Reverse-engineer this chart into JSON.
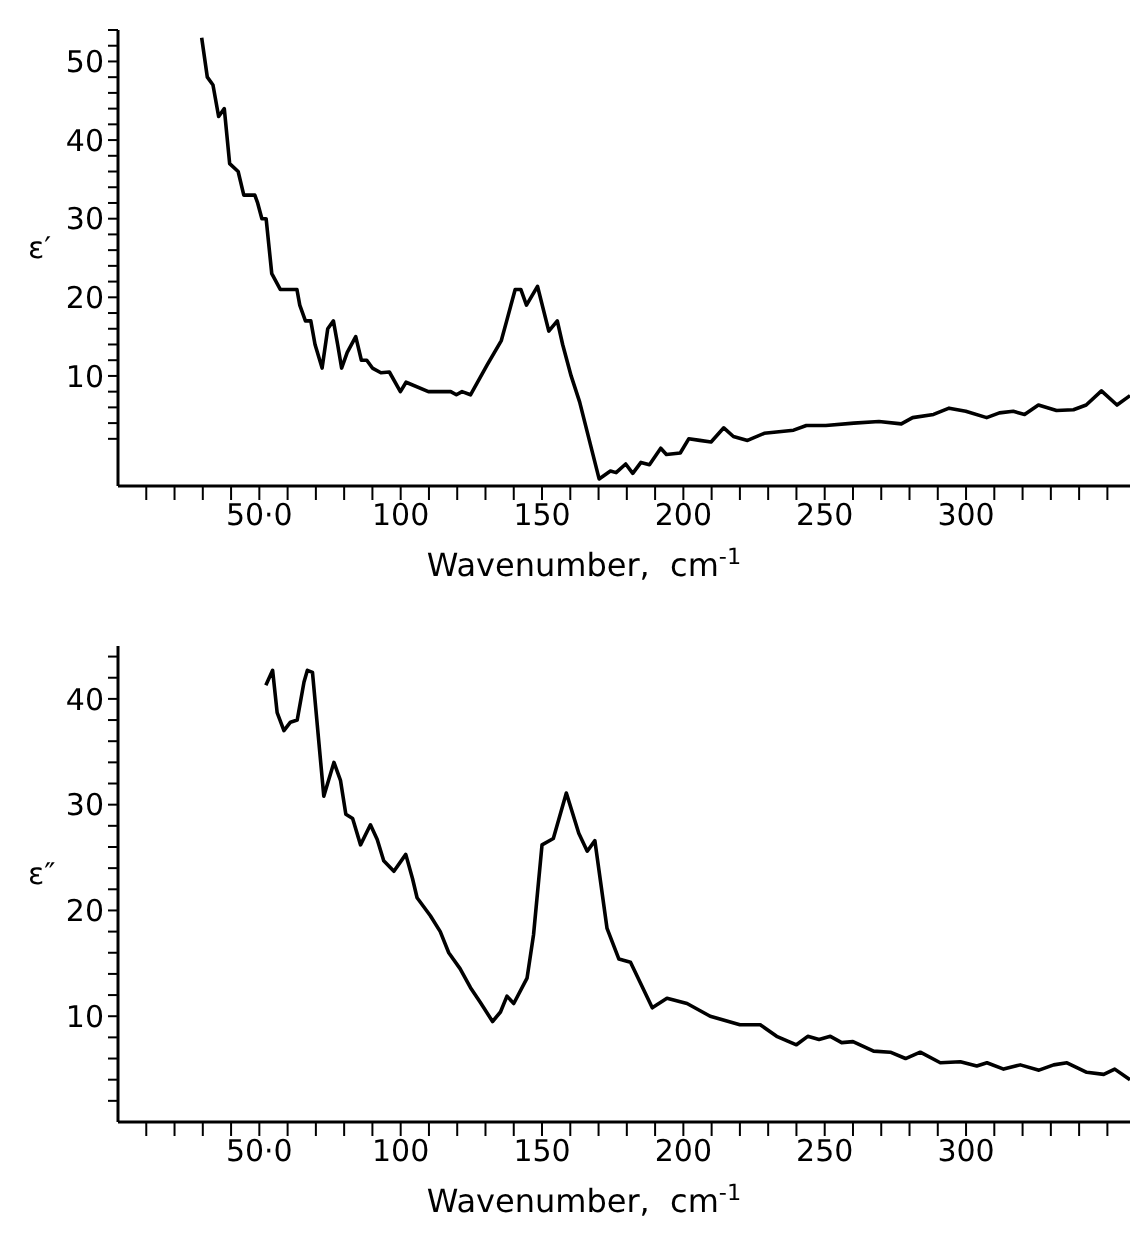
{
  "chart_data": [
    {
      "type": "line",
      "ylabel": "ε′",
      "xlabel": "Wavenumber,  cm$^{-1}$",
      "color": "#000000",
      "marker": "none",
      "line_style": "solid",
      "xlim": [
        0,
        358
      ],
      "ylim": [
        -4,
        54
      ],
      "xticks": [
        {
          "value": 10,
          "label": null
        },
        {
          "value": 20,
          "label": null
        },
        {
          "value": 30,
          "label": null
        },
        {
          "value": 40,
          "label": null
        },
        {
          "value": 50,
          "label": "50·0"
        },
        {
          "value": 60,
          "label": null
        },
        {
          "value": 70,
          "label": null
        },
        {
          "value": 80,
          "label": null
        },
        {
          "value": 90,
          "label": null
        },
        100,
        {
          "value": 110,
          "label": null
        },
        {
          "value": 120,
          "label": null
        },
        {
          "value": 130,
          "label": null
        },
        {
          "value": 140,
          "label": null
        },
        150,
        {
          "value": 160,
          "label": null
        },
        {
          "value": 170,
          "label": null
        },
        {
          "value": 180,
          "label": null
        },
        {
          "value": 190,
          "label": null
        },
        200,
        {
          "value": 210,
          "label": null
        },
        {
          "value": 220,
          "label": null
        },
        {
          "value": 230,
          "label": null
        },
        {
          "value": 240,
          "label": null
        },
        250,
        {
          "value": 260,
          "label": null
        },
        {
          "value": 270,
          "label": null
        },
        {
          "value": 280,
          "label": null
        },
        {
          "value": 290,
          "label": null
        },
        300,
        {
          "value": 310,
          "label": null
        },
        {
          "value": 320,
          "label": null
        },
        {
          "value": 330,
          "label": null
        },
        {
          "value": 340,
          "label": null
        },
        {
          "value": 350,
          "label": null
        }
      ],
      "yticks": [
        {
          "value": 2,
          "label": null
        },
        {
          "value": 4,
          "label": null
        },
        {
          "value": 6,
          "label": null
        },
        {
          "value": 8,
          "label": null
        },
        10,
        {
          "value": 12,
          "label": null
        },
        {
          "value": 14,
          "label": null
        },
        {
          "value": 16,
          "label": null
        },
        {
          "value": 18,
          "label": null
        },
        20,
        {
          "value": 22,
          "label": null
        },
        {
          "value": 24,
          "label": null
        },
        {
          "value": 26,
          "label": null
        },
        {
          "value": 28,
          "label": null
        },
        30,
        {
          "value": 32,
          "label": null
        },
        {
          "value": 34,
          "label": null
        },
        {
          "value": 36,
          "label": null
        },
        {
          "value": 38,
          "label": null
        },
        40,
        {
          "value": 42,
          "label": null
        },
        {
          "value": 44,
          "label": null
        },
        {
          "value": 46,
          "label": null
        },
        {
          "value": 48,
          "label": null
        },
        50,
        {
          "value": 52,
          "label": null
        },
        {
          "value": 54,
          "label": null
        }
      ],
      "x": [
        29.6,
        31.6,
        33.6,
        35.6,
        37.6,
        39.5,
        42.5,
        44.5,
        48.4,
        49.4,
        50.9,
        52.4,
        54.4,
        57.4,
        63.3,
        64.3,
        66.3,
        68.2,
        69.7,
        72.2,
        74.2,
        76.2,
        77.7,
        79.1,
        81.1,
        84.1,
        86.1,
        88,
        90,
        93,
        96,
        99.9,
        101.9,
        109.8,
        117.7,
        119.7,
        121.7,
        124.7,
        130.6,
        135.6,
        137.5,
        140.5,
        142.5,
        144.5,
        148.4,
        152.4,
        155.4,
        157.3,
        160.3,
        163.3,
        170.2,
        174.2,
        176.2,
        179.6,
        182.1,
        185,
        188,
        192,
        194,
        198.9,
        201.9,
        205.8,
        209.8,
        214.3,
        217.7,
        222.7,
        228.6,
        239,
        243.5,
        250.4,
        260.3,
        269.2,
        277.1,
        281.1,
        288.5,
        294,
        299.9,
        307.3,
        311.8,
        316.7,
        320.7,
        325.6,
        332,
        338,
        342.5,
        347.9,
        353.4,
        358
      ],
      "values": [
        53,
        48,
        47,
        43,
        44,
        37,
        36,
        33,
        33,
        32,
        30,
        30,
        23,
        21,
        21,
        19,
        17,
        17,
        14,
        11,
        16,
        17,
        14,
        11,
        13,
        15,
        12,
        12,
        11,
        10.4,
        10.5,
        8,
        9.2,
        8,
        8,
        7.6,
        8,
        7.6,
        11.4,
        14.5,
        17,
        21,
        21,
        19,
        21.4,
        15.7,
        17,
        14,
        10,
        6.7,
        -3.1,
        -2.1,
        -2.3,
        -1.2,
        -2.4,
        -1,
        -1.3,
        0.8,
        0,
        0.2,
        2,
        1.8,
        1.6,
        3.4,
        2.3,
        1.8,
        2.7,
        3.1,
        3.7,
        3.7,
        4,
        4.2,
        3.9,
        4.7,
        5.1,
        5.9,
        5.5,
        4.7,
        5.3,
        5.5,
        5.1,
        6.3,
        5.6,
        5.7,
        6.3,
        8.1,
        6.3,
        7.5
      ]
    },
    {
      "type": "line",
      "ylabel": "ε″",
      "xlabel": "Wavenumber,  cm$^{-1}$",
      "color": "#000000",
      "marker": "none",
      "line_style": "solid",
      "xlim": [
        0,
        358
      ],
      "ylim": [
        0,
        45
      ],
      "xticks": [
        {
          "value": 10,
          "label": null
        },
        {
          "value": 20,
          "label": null
        },
        {
          "value": 30,
          "label": null
        },
        {
          "value": 40,
          "label": null
        },
        {
          "value": 50,
          "label": "50·0"
        },
        {
          "value": 60,
          "label": null
        },
        {
          "value": 70,
          "label": null
        },
        {
          "value": 80,
          "label": null
        },
        {
          "value": 90,
          "label": null
        },
        100,
        {
          "value": 110,
          "label": null
        },
        {
          "value": 120,
          "label": null
        },
        {
          "value": 130,
          "label": null
        },
        {
          "value": 140,
          "label": null
        },
        150,
        {
          "value": 160,
          "label": null
        },
        {
          "value": 170,
          "label": null
        },
        {
          "value": 180,
          "label": null
        },
        {
          "value": 190,
          "label": null
        },
        200,
        {
          "value": 210,
          "label": null
        },
        {
          "value": 220,
          "label": null
        },
        {
          "value": 230,
          "label": null
        },
        {
          "value": 240,
          "label": null
        },
        250,
        {
          "value": 260,
          "label": null
        },
        {
          "value": 270,
          "label": null
        },
        {
          "value": 280,
          "label": null
        },
        {
          "value": 290,
          "label": null
        },
        300,
        {
          "value": 310,
          "label": null
        },
        {
          "value": 320,
          "label": null
        },
        {
          "value": 330,
          "label": null
        },
        {
          "value": 340,
          "label": null
        },
        {
          "value": 350,
          "label": null
        }
      ],
      "yticks": [
        {
          "value": 2,
          "label": null
        },
        {
          "value": 4,
          "label": null
        },
        {
          "value": 6,
          "label": null
        },
        {
          "value": 8,
          "label": null
        },
        10,
        {
          "value": 12,
          "label": null
        },
        {
          "value": 14,
          "label": null
        },
        {
          "value": 16,
          "label": null
        },
        {
          "value": 18,
          "label": null
        },
        20,
        {
          "value": 22,
          "label": null
        },
        {
          "value": 24,
          "label": null
        },
        {
          "value": 26,
          "label": null
        },
        {
          "value": 28,
          "label": null
        },
        30,
        {
          "value": 32,
          "label": null
        },
        {
          "value": 34,
          "label": null
        },
        {
          "value": 36,
          "label": null
        },
        {
          "value": 38,
          "label": null
        },
        40,
        {
          "value": 42,
          "label": null
        },
        {
          "value": 44,
          "label": null
        }
      ],
      "x": [
        52.3,
        54.7,
        56.3,
        58.7,
        61,
        63.4,
        65.8,
        67,
        68.8,
        72.8,
        76.4,
        78.7,
        80.6,
        83,
        85.8,
        89.3,
        91.7,
        94,
        97.6,
        101.8,
        104.2,
        105.8,
        110.5,
        114,
        117,
        121,
        124.7,
        128.2,
        132.5,
        135.3,
        137.6,
        140,
        144.7,
        147,
        150,
        154,
        158.6,
        163,
        166,
        168.7,
        173,
        177.2,
        181.3,
        189,
        194.2,
        201.3,
        209.5,
        220,
        227.2,
        233,
        240,
        244,
        248,
        252,
        256,
        260,
        267.3,
        273.2,
        278.6,
        283.8,
        290.9,
        298,
        303.8,
        307.4,
        313.3,
        319.2,
        325.8,
        331,
        335.7,
        342.7,
        348.7,
        352.6,
        358
      ],
      "values": [
        41.3,
        42.7,
        38.7,
        37,
        37.8,
        38,
        41.6,
        42.7,
        42.5,
        30.8,
        34,
        32.3,
        29.1,
        28.7,
        26.2,
        28.1,
        26.7,
        24.7,
        23.7,
        25.3,
        23,
        21.2,
        19.5,
        18,
        16,
        14.5,
        12.7,
        11.3,
        9.5,
        10.4,
        11.9,
        11.2,
        13.6,
        17.7,
        26.2,
        26.8,
        31.1,
        27.3,
        25.6,
        26.6,
        18.3,
        15.4,
        15.1,
        10.8,
        11.7,
        11.2,
        10,
        9.2,
        9.2,
        8.1,
        7.3,
        8.1,
        7.8,
        8.1,
        7.5,
        7.6,
        6.7,
        6.6,
        6,
        6.6,
        5.6,
        5.7,
        5.3,
        5.6,
        5,
        5.4,
        4.9,
        5.4,
        5.6,
        4.7,
        4.5,
        5,
        4
      ]
    }
  ]
}
